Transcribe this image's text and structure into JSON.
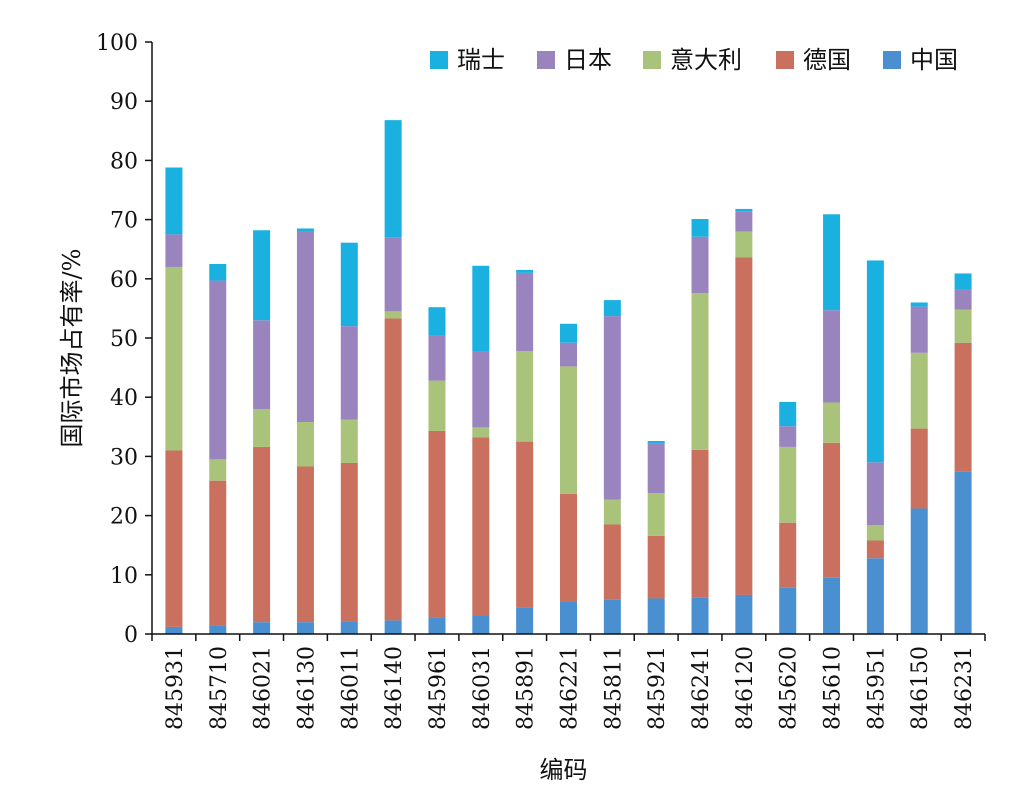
{
  "chart_data": {
    "type": "bar",
    "stacked": true,
    "title": "",
    "xlabel": "编码",
    "ylabel": "国际市场占有率/%",
    "ylim": [
      0,
      100
    ],
    "yticks": [
      0,
      10,
      20,
      30,
      40,
      50,
      60,
      70,
      80,
      90,
      100
    ],
    "grid": false,
    "legend_position": "top-right",
    "categories": [
      "845931",
      "845710",
      "846021",
      "846130",
      "846011",
      "846140",
      "845961",
      "846031",
      "845891",
      "846221",
      "845811",
      "845921",
      "846241",
      "846120",
      "845620",
      "845610",
      "845951",
      "846150",
      "846231"
    ],
    "series": [
      {
        "name": "中国",
        "color": "#4a8fd0",
        "values": [
          1.2,
          1.5,
          2.0,
          2.0,
          2.1,
          2.3,
          2.8,
          3.2,
          4.5,
          5.5,
          5.8,
          6.0,
          6.1,
          6.6,
          7.8,
          9.5,
          12.8,
          21.2,
          27.5
        ]
      },
      {
        "name": "德国",
        "color": "#c9705f",
        "values": [
          29.8,
          24.4,
          29.6,
          26.3,
          26.8,
          51.0,
          31.5,
          30.0,
          28.0,
          18.2,
          12.7,
          10.6,
          25.0,
          57.0,
          11.0,
          22.8,
          3.0,
          13.5,
          21.7
        ]
      },
      {
        "name": "意大利",
        "color": "#a9c47a",
        "values": [
          31.0,
          3.6,
          6.4,
          7.5,
          7.3,
          1.2,
          8.5,
          1.7,
          15.3,
          21.5,
          4.2,
          7.2,
          26.5,
          4.4,
          12.8,
          6.8,
          2.6,
          12.8,
          5.6
        ]
      },
      {
        "name": "日本",
        "color": "#9a84bd",
        "values": [
          5.5,
          30.2,
          15.0,
          32.2,
          15.8,
          12.5,
          7.7,
          12.8,
          13.2,
          4.0,
          31.0,
          8.4,
          9.5,
          3.4,
          3.5,
          15.6,
          10.6,
          7.8,
          3.4
        ]
      },
      {
        "name": "瑞士",
        "color": "#1ab0e0",
        "values": [
          11.3,
          2.8,
          15.2,
          0.5,
          14.1,
          19.8,
          4.7,
          14.5,
          0.5,
          3.2,
          2.7,
          0.4,
          3.0,
          0.4,
          4.1,
          16.2,
          34.1,
          0.7,
          2.7
        ]
      }
    ]
  }
}
